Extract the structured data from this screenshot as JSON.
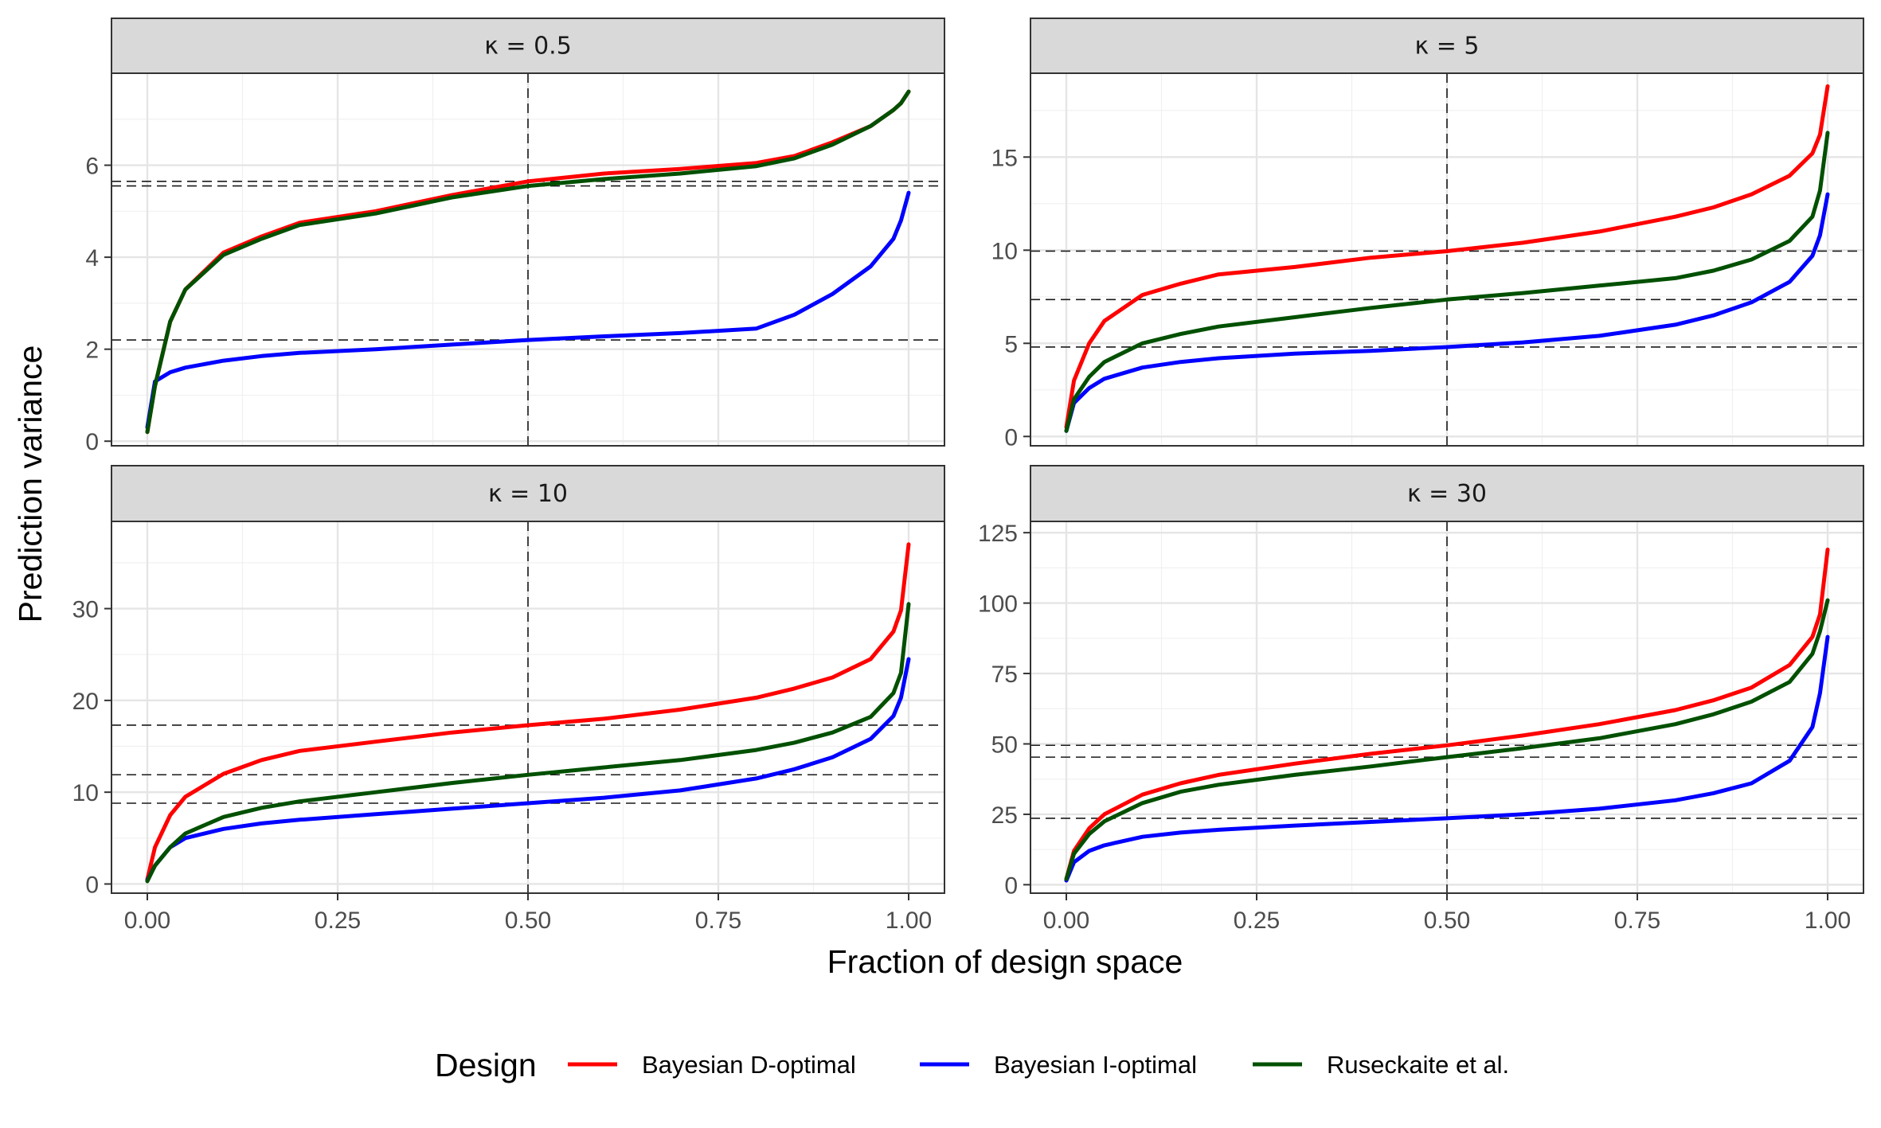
{
  "chart_data": {
    "type": "line",
    "xlabel": "Fraction of design space",
    "ylabel": "Prediction variance",
    "legend": {
      "title": "Design",
      "position": "bottom",
      "entries": [
        {
          "name": "Bayesian D-optimal",
          "color": "#ff0000"
        },
        {
          "name": "Bayesian I-optimal",
          "color": "#0000ff"
        },
        {
          "name": "Ruseckaite et al.",
          "color": "#005000"
        }
      ]
    },
    "grid": true,
    "x_ticks": [
      "0.00",
      "0.25",
      "0.50",
      "0.75",
      "1.00"
    ],
    "x": [
      0,
      0.01,
      0.03,
      0.05,
      0.1,
      0.15,
      0.2,
      0.3,
      0.4,
      0.5,
      0.6,
      0.7,
      0.8,
      0.85,
      0.9,
      0.95,
      0.98,
      0.99,
      1.0
    ],
    "x_range": [
      0,
      1
    ],
    "vline_x": 0.5,
    "panels": [
      {
        "strip": "κ = 0.5",
        "ylim": [
          -0.1,
          8.0
        ],
        "y_ticks": [
          0,
          2,
          4,
          6
        ],
        "hlines": [
          5.65,
          5.55,
          2.2
        ],
        "series": [
          {
            "name": "Bayesian D-optimal",
            "values": [
              0.2,
              1.2,
              2.6,
              3.3,
              4.1,
              4.45,
              4.75,
              5.0,
              5.35,
              5.65,
              5.82,
              5.92,
              6.05,
              6.2,
              6.5,
              6.85,
              7.2,
              7.35,
              7.6
            ]
          },
          {
            "name": "Bayesian I-optimal",
            "values": [
              0.3,
              1.3,
              1.5,
              1.6,
              1.75,
              1.85,
              1.92,
              2.0,
              2.1,
              2.2,
              2.28,
              2.35,
              2.45,
              2.75,
              3.2,
              3.8,
              4.4,
              4.8,
              5.4
            ]
          },
          {
            "name": "Ruseckaite et al.",
            "values": [
              0.2,
              1.2,
              2.6,
              3.3,
              4.05,
              4.4,
              4.7,
              4.95,
              5.3,
              5.55,
              5.7,
              5.82,
              5.98,
              6.15,
              6.45,
              6.85,
              7.2,
              7.35,
              7.6
            ]
          }
        ]
      },
      {
        "strip": "κ = 5",
        "ylim": [
          -0.5,
          19.5
        ],
        "y_ticks": [
          0,
          5,
          10,
          15
        ],
        "hlines": [
          9.95,
          7.35,
          4.8
        ],
        "series": [
          {
            "name": "Bayesian D-optimal",
            "values": [
              0.5,
              3.0,
              5.0,
              6.2,
              7.6,
              8.2,
              8.7,
              9.1,
              9.6,
              9.95,
              10.4,
              11.0,
              11.8,
              12.3,
              13.0,
              14.0,
              15.2,
              16.2,
              18.8
            ]
          },
          {
            "name": "Bayesian I-optimal",
            "values": [
              0.3,
              1.8,
              2.6,
              3.1,
              3.7,
              4.0,
              4.2,
              4.45,
              4.6,
              4.8,
              5.05,
              5.4,
              6.0,
              6.5,
              7.2,
              8.3,
              9.7,
              10.8,
              13.0
            ]
          },
          {
            "name": "Ruseckaite et al.",
            "values": [
              0.3,
              2.0,
              3.2,
              4.0,
              5.0,
              5.5,
              5.9,
              6.4,
              6.9,
              7.35,
              7.7,
              8.1,
              8.5,
              8.9,
              9.5,
              10.5,
              11.8,
              13.2,
              16.3
            ]
          }
        ]
      },
      {
        "strip": "κ = 10",
        "ylim": [
          -1,
          39.5
        ],
        "y_ticks": [
          0,
          10,
          20,
          30
        ],
        "hlines": [
          17.3,
          11.9,
          8.8
        ],
        "series": [
          {
            "name": "Bayesian D-optimal",
            "values": [
              0.5,
              4.0,
              7.5,
              9.5,
              12.0,
              13.5,
              14.5,
              15.5,
              16.5,
              17.3,
              18.0,
              19.0,
              20.3,
              21.3,
              22.5,
              24.5,
              27.5,
              29.8,
              37.0
            ]
          },
          {
            "name": "Bayesian I-optimal",
            "values": [
              0.4,
              2.0,
              4.0,
              5.0,
              6.0,
              6.6,
              7.0,
              7.6,
              8.2,
              8.8,
              9.4,
              10.2,
              11.5,
              12.5,
              13.8,
              15.8,
              18.3,
              20.3,
              24.5
            ]
          },
          {
            "name": "Ruseckaite et al.",
            "values": [
              0.3,
              2.0,
              4.0,
              5.5,
              7.3,
              8.3,
              9.0,
              10.0,
              11.0,
              11.9,
              12.7,
              13.5,
              14.6,
              15.4,
              16.5,
              18.2,
              20.8,
              23.0,
              30.5
            ]
          }
        ]
      },
      {
        "strip": "κ = 30",
        "ylim": [
          -3,
          129
        ],
        "y_ticks": [
          0,
          25,
          50,
          75,
          100,
          125
        ],
        "hlines": [
          49.5,
          45.3,
          23.6
        ],
        "series": [
          {
            "name": "Bayesian D-optimal",
            "values": [
              2.0,
              12.0,
              20.0,
              25.0,
              32.0,
              36.0,
              39.0,
              43.0,
              46.5,
              49.5,
              53.0,
              57.0,
              62.0,
              65.5,
              70.0,
              78.0,
              88.0,
              96.0,
              119.0
            ]
          },
          {
            "name": "Bayesian I-optimal",
            "values": [
              1.5,
              8.0,
              12.0,
              14.0,
              17.0,
              18.5,
              19.5,
              21.0,
              22.3,
              23.6,
              25.0,
              27.0,
              30.0,
              32.5,
              36.0,
              44.0,
              56.0,
              68.0,
              88.0
            ]
          },
          {
            "name": "Ruseckaite et al.",
            "values": [
              2.0,
              11.0,
              18.0,
              22.5,
              29.0,
              33.0,
              35.5,
              39.0,
              42.0,
              45.3,
              48.5,
              52.0,
              57.0,
              60.5,
              65.0,
              72.0,
              82.0,
              90.0,
              101.0
            ]
          }
        ]
      }
    ]
  }
}
